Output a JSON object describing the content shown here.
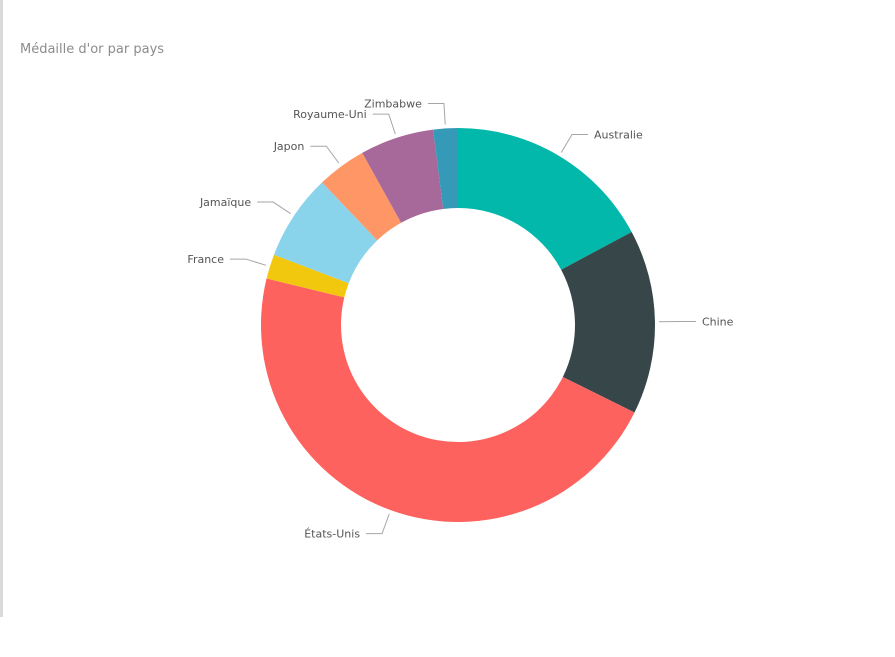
{
  "chart_data": {
    "type": "pie",
    "donut": true,
    "title": "Médaille d'or par pays",
    "slices": [
      {
        "label": "Australie",
        "value": 17,
        "color": "#01B8AA"
      },
      {
        "label": "Chine",
        "value": 15,
        "color": "#374649"
      },
      {
        "label": "États-Unis",
        "value": 46,
        "color": "#FD625E"
      },
      {
        "label": "France",
        "value": 2,
        "color": "#F2C80F"
      },
      {
        "label": "Jamaïque",
        "value": 7,
        "color": "#8AD4EB"
      },
      {
        "label": "Japon",
        "value": 4,
        "color": "#FE9666"
      },
      {
        "label": "Royaume-Uni",
        "value": 6,
        "color": "#A66999"
      },
      {
        "label": "Zimbabwe",
        "value": 2,
        "color": "#3599B8"
      }
    ]
  }
}
